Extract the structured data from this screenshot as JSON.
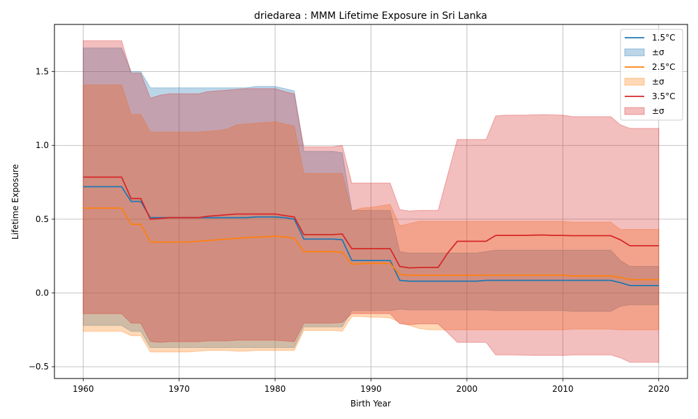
{
  "chart_data": {
    "type": "area",
    "title": "driedarea : MMM Lifetime Exposure in Sri Lanka",
    "xlabel": "Birth Year",
    "ylabel": "Lifetime Exposure",
    "xlim": [
      1957,
      2023
    ],
    "ylim": [
      -0.58,
      1.82
    ],
    "xticks": [
      1960,
      1970,
      1980,
      1990,
      2000,
      2010,
      2020
    ],
    "yticks": [
      -0.5,
      0.0,
      0.5,
      1.0,
      1.5
    ],
    "ytick_labels": [
      "−0.5",
      "0.0",
      "0.5",
      "1.0",
      "1.5"
    ],
    "grid": true,
    "legend_position": "top-right",
    "series": [
      {
        "name": "1.5°C",
        "band_label": "±σ",
        "color": "#1f77b4",
        "x": [
          1960,
          1964,
          1965,
          1966,
          1967,
          1968,
          1969,
          1970,
          1971,
          1972,
          1973,
          1974,
          1975,
          1976,
          1977,
          1978,
          1979,
          1980,
          1981,
          1982,
          1983,
          1984,
          1985,
          1986,
          1987,
          1988,
          1989,
          1990,
          1991,
          1992,
          1993,
          1994,
          1995,
          1996,
          1997,
          1998,
          1999,
          2000,
          2001,
          2002,
          2003,
          2004,
          2005,
          2006,
          2007,
          2008,
          2009,
          2010,
          2011,
          2012,
          2013,
          2014,
          2015,
          2016,
          2017,
          2018,
          2019,
          2020
        ],
        "mean": [
          0.72,
          0.72,
          0.62,
          0.62,
          0.51,
          0.51,
          0.51,
          0.51,
          0.51,
          0.51,
          0.51,
          0.51,
          0.51,
          0.51,
          0.51,
          0.515,
          0.515,
          0.515,
          0.51,
          0.5,
          0.365,
          0.365,
          0.365,
          0.365,
          0.36,
          0.22,
          0.22,
          0.22,
          0.22,
          0.22,
          0.085,
          0.08,
          0.08,
          0.08,
          0.08,
          0.08,
          0.08,
          0.08,
          0.08,
          0.085,
          0.085,
          0.085,
          0.085,
          0.085,
          0.085,
          0.085,
          0.085,
          0.085,
          0.085,
          0.085,
          0.085,
          0.085,
          0.085,
          0.07,
          0.05,
          0.05,
          0.05,
          0.05
        ],
        "upper": [
          1.66,
          1.66,
          1.5,
          1.5,
          1.39,
          1.39,
          1.39,
          1.39,
          1.39,
          1.39,
          1.39,
          1.39,
          1.39,
          1.39,
          1.39,
          1.4,
          1.4,
          1.4,
          1.385,
          1.37,
          0.96,
          0.96,
          0.96,
          0.96,
          0.95,
          0.56,
          0.56,
          0.56,
          0.56,
          0.56,
          0.28,
          0.27,
          0.27,
          0.27,
          0.27,
          0.27,
          0.27,
          0.27,
          0.27,
          0.28,
          0.29,
          0.29,
          0.29,
          0.29,
          0.29,
          0.29,
          0.29,
          0.29,
          0.29,
          0.29,
          0.29,
          0.29,
          0.29,
          0.22,
          0.18,
          0.18,
          0.18,
          0.18
        ],
        "lower": [
          -0.22,
          -0.22,
          -0.26,
          -0.26,
          -0.37,
          -0.37,
          -0.37,
          -0.37,
          -0.37,
          -0.37,
          -0.37,
          -0.37,
          -0.37,
          -0.37,
          -0.37,
          -0.37,
          -0.37,
          -0.37,
          -0.37,
          -0.37,
          -0.23,
          -0.23,
          -0.23,
          -0.23,
          -0.23,
          -0.12,
          -0.12,
          -0.12,
          -0.12,
          -0.12,
          -0.11,
          -0.115,
          -0.115,
          -0.115,
          -0.115,
          -0.115,
          -0.115,
          -0.115,
          -0.115,
          -0.115,
          -0.12,
          -0.12,
          -0.12,
          -0.12,
          -0.12,
          -0.12,
          -0.12,
          -0.12,
          -0.125,
          -0.125,
          -0.125,
          -0.125,
          -0.125,
          -0.09,
          -0.08,
          -0.08,
          -0.08,
          -0.08
        ]
      },
      {
        "name": "2.5°C",
        "band_label": "±σ",
        "color": "#ff7f0e",
        "x": [
          1960,
          1964,
          1965,
          1966,
          1967,
          1968,
          1969,
          1970,
          1971,
          1972,
          1973,
          1974,
          1975,
          1976,
          1977,
          1978,
          1979,
          1980,
          1981,
          1982,
          1983,
          1984,
          1985,
          1986,
          1987,
          1988,
          1989,
          1990,
          1991,
          1992,
          1993,
          1994,
          1995,
          1996,
          1997,
          1998,
          1999,
          2000,
          2001,
          2002,
          2003,
          2004,
          2005,
          2006,
          2007,
          2008,
          2009,
          2010,
          2011,
          2012,
          2013,
          2014,
          2015,
          2016,
          2017,
          2018,
          2019,
          2020
        ],
        "mean": [
          0.575,
          0.575,
          0.465,
          0.465,
          0.345,
          0.345,
          0.345,
          0.345,
          0.345,
          0.35,
          0.355,
          0.36,
          0.365,
          0.37,
          0.375,
          0.378,
          0.38,
          0.385,
          0.38,
          0.37,
          0.28,
          0.28,
          0.28,
          0.28,
          0.275,
          0.195,
          0.198,
          0.2,
          0.2,
          0.2,
          0.125,
          0.12,
          0.12,
          0.12,
          0.12,
          0.12,
          0.12,
          0.12,
          0.12,
          0.12,
          0.12,
          0.12,
          0.12,
          0.12,
          0.12,
          0.12,
          0.12,
          0.12,
          0.115,
          0.115,
          0.115,
          0.115,
          0.115,
          0.105,
          0.09,
          0.09,
          0.09,
          0.09
        ],
        "upper": [
          1.41,
          1.41,
          1.21,
          1.21,
          1.09,
          1.09,
          1.09,
          1.09,
          1.09,
          1.09,
          1.095,
          1.1,
          1.11,
          1.14,
          1.145,
          1.15,
          1.155,
          1.16,
          1.145,
          1.13,
          0.81,
          0.81,
          0.81,
          0.81,
          0.81,
          0.555,
          0.575,
          0.58,
          0.59,
          0.6,
          0.455,
          0.47,
          0.485,
          0.485,
          0.485,
          0.485,
          0.485,
          0.485,
          0.485,
          0.485,
          0.485,
          0.485,
          0.485,
          0.485,
          0.485,
          0.485,
          0.485,
          0.485,
          0.48,
          0.48,
          0.48,
          0.48,
          0.48,
          0.43,
          0.43,
          0.43,
          0.43,
          0.43
        ],
        "lower": [
          -0.26,
          -0.26,
          -0.29,
          -0.29,
          -0.4,
          -0.4,
          -0.4,
          -0.4,
          -0.4,
          -0.395,
          -0.39,
          -0.39,
          -0.39,
          -0.395,
          -0.395,
          -0.39,
          -0.39,
          -0.39,
          -0.39,
          -0.39,
          -0.255,
          -0.255,
          -0.255,
          -0.255,
          -0.26,
          -0.16,
          -0.16,
          -0.165,
          -0.165,
          -0.17,
          -0.2,
          -0.22,
          -0.24,
          -0.25,
          -0.25,
          -0.25,
          -0.25,
          -0.25,
          -0.25,
          -0.25,
          -0.25,
          -0.25,
          -0.25,
          -0.25,
          -0.25,
          -0.25,
          -0.25,
          -0.25,
          -0.245,
          -0.245,
          -0.245,
          -0.245,
          -0.245,
          -0.25,
          -0.25,
          -0.25,
          -0.25,
          -0.25
        ]
      },
      {
        "name": "3.5°C",
        "band_label": "±σ",
        "color": "#d62728",
        "x": [
          1960,
          1964,
          1965,
          1966,
          1967,
          1968,
          1969,
          1970,
          1971,
          1972,
          1973,
          1974,
          1975,
          1976,
          1977,
          1978,
          1979,
          1980,
          1981,
          1982,
          1983,
          1984,
          1985,
          1986,
          1987,
          1988,
          1989,
          1990,
          1991,
          1992,
          1993,
          1994,
          1995,
          1996,
          1997,
          1998,
          1999,
          2000,
          2001,
          2002,
          2003,
          2004,
          2005,
          2006,
          2007,
          2008,
          2009,
          2010,
          2011,
          2012,
          2013,
          2014,
          2015,
          2016,
          2017,
          2018,
          2019,
          2020
        ],
        "mean": [
          0.785,
          0.785,
          0.64,
          0.64,
          0.5,
          0.505,
          0.51,
          0.51,
          0.51,
          0.51,
          0.52,
          0.525,
          0.53,
          0.535,
          0.535,
          0.535,
          0.535,
          0.535,
          0.525,
          0.515,
          0.395,
          0.395,
          0.395,
          0.395,
          0.4,
          0.3,
          0.3,
          0.3,
          0.3,
          0.3,
          0.18,
          0.17,
          0.172,
          0.173,
          0.173,
          0.27,
          0.35,
          0.35,
          0.35,
          0.35,
          0.39,
          0.39,
          0.39,
          0.39,
          0.392,
          0.393,
          0.39,
          0.39,
          0.388,
          0.388,
          0.388,
          0.388,
          0.388,
          0.36,
          0.32,
          0.32,
          0.32,
          0.32
        ],
        "upper": [
          1.71,
          1.71,
          1.49,
          1.49,
          1.32,
          1.34,
          1.35,
          1.35,
          1.35,
          1.35,
          1.365,
          1.37,
          1.375,
          1.38,
          1.385,
          1.385,
          1.385,
          1.385,
          1.365,
          1.35,
          0.99,
          0.99,
          0.99,
          0.99,
          1.0,
          0.745,
          0.745,
          0.745,
          0.745,
          0.745,
          0.565,
          0.555,
          0.56,
          0.56,
          0.56,
          0.8,
          1.04,
          1.04,
          1.04,
          1.04,
          1.2,
          1.205,
          1.205,
          1.205,
          1.207,
          1.208,
          1.207,
          1.205,
          1.195,
          1.195,
          1.195,
          1.195,
          1.195,
          1.14,
          1.115,
          1.115,
          1.115,
          1.115
        ],
        "lower": [
          -0.14,
          -0.14,
          -0.205,
          -0.205,
          -0.33,
          -0.335,
          -0.33,
          -0.33,
          -0.33,
          -0.33,
          -0.325,
          -0.325,
          -0.325,
          -0.32,
          -0.32,
          -0.32,
          -0.32,
          -0.32,
          -0.325,
          -0.33,
          -0.205,
          -0.205,
          -0.205,
          -0.205,
          -0.2,
          -0.14,
          -0.14,
          -0.14,
          -0.14,
          -0.14,
          -0.21,
          -0.215,
          -0.21,
          -0.21,
          -0.21,
          -0.27,
          -0.335,
          -0.335,
          -0.335,
          -0.335,
          -0.42,
          -0.42,
          -0.42,
          -0.422,
          -0.424,
          -0.424,
          -0.424,
          -0.424,
          -0.42,
          -0.42,
          -0.42,
          -0.42,
          -0.42,
          -0.44,
          -0.47,
          -0.47,
          -0.47,
          -0.47
        ]
      }
    ]
  }
}
